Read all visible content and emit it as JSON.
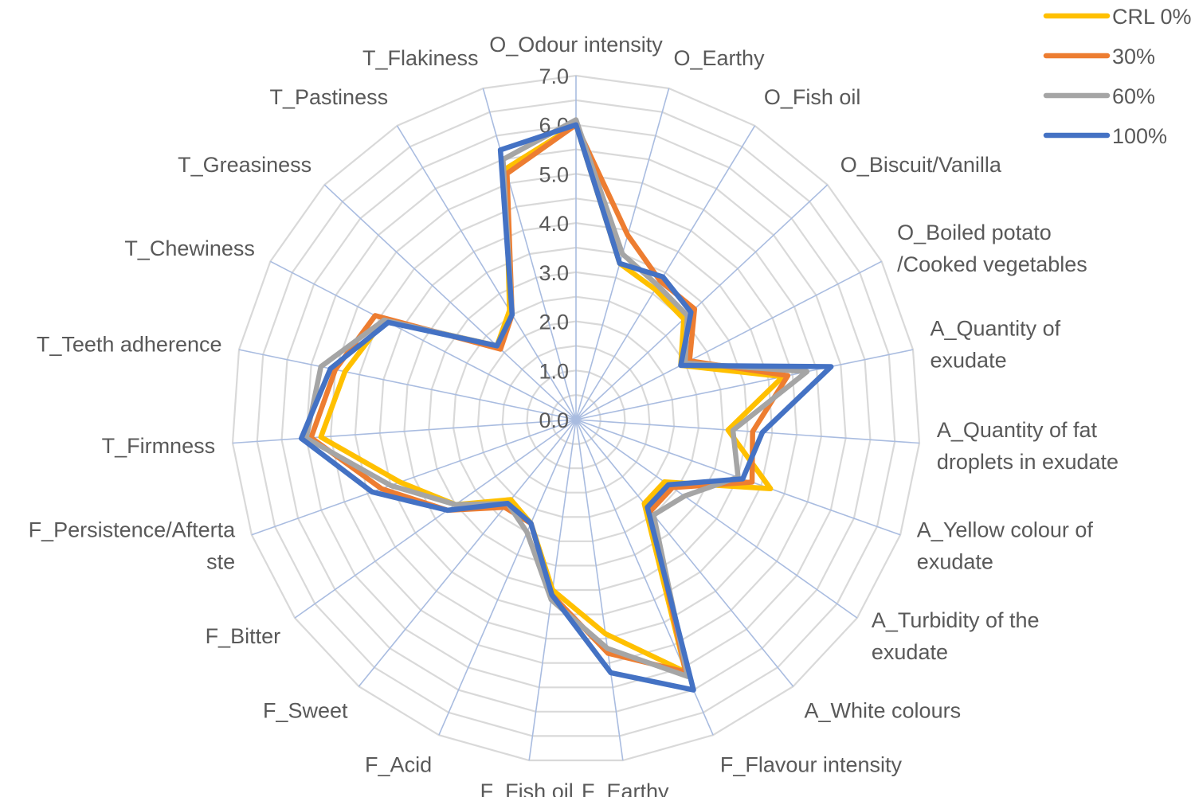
{
  "chart_data": {
    "type": "radar",
    "title": "",
    "categories": [
      "O_Odour intensity",
      "O_Earthy",
      "O_Fish oil",
      "O_Biscuit/Vanilla",
      "O_Boiled potato\n/Cooked vegetables",
      "A_Quantity of\nexudate",
      "A_Quantity of fat\ndroplets in exudate",
      "A_Yellow colour of\nexudate",
      "A_Turbidity of the\nexudate",
      "A_White colours",
      "F_Flavour intensity",
      "F_Earthy",
      "F_Fish oil",
      "F_Acid",
      "F_Sweet",
      "F_Bitter",
      "F_Persistence/Afterta\nste",
      "T_Firmness",
      "T_Teeth adherence",
      "T_Chewiness",
      "T_Greasiness",
      "T_Pastiness",
      "T_Flakiness"
    ],
    "ticks": [
      "0.0",
      "1.0",
      "2.0",
      "3.0",
      "4.0",
      "5.0",
      "6.0",
      "7.0"
    ],
    "rmin": 0,
    "rmax": 7,
    "series": [
      {
        "name": "CRL 0%",
        "color": "#FFC000",
        "values": [
          6.0,
          3.3,
          3.1,
          3.0,
          2.4,
          4.3,
          3.1,
          4.2,
          2.2,
          2.2,
          5.6,
          4.4,
          3.5,
          2.3,
          2.1,
          3.0,
          3.8,
          5.2,
          4.8,
          4.4,
          2.2,
          2.6,
          5.3
        ]
      },
      {
        "name": "30%",
        "color": "#ED7D31",
        "values": [
          6.0,
          3.9,
          3.3,
          3.3,
          2.6,
          4.4,
          3.6,
          3.8,
          2.4,
          2.4,
          5.6,
          4.8,
          3.6,
          2.3,
          2.3,
          3.2,
          4.2,
          5.4,
          5.0,
          4.6,
          2.1,
          2.5,
          5.2
        ]
      },
      {
        "name": "60%",
        "color": "#A5A5A5",
        "values": [
          6.1,
          3.5,
          3.2,
          3.1,
          2.5,
          4.8,
          3.2,
          3.5,
          2.7,
          2.5,
          5.7,
          4.7,
          3.7,
          2.5,
          2.2,
          3.0,
          4.0,
          5.5,
          5.3,
          4.4,
          2.2,
          2.5,
          5.5
        ]
      },
      {
        "name": "100%",
        "color": "#4472C4",
        "values": [
          6.0,
          3.3,
          3.4,
          3.2,
          2.4,
          5.3,
          3.8,
          3.6,
          2.3,
          2.3,
          6.0,
          5.2,
          3.6,
          2.3,
          2.2,
          3.2,
          4.4,
          5.6,
          5.1,
          4.3,
          2.2,
          2.5,
          5.7
        ]
      }
    ],
    "grid": true,
    "legend_position": "top-right"
  }
}
